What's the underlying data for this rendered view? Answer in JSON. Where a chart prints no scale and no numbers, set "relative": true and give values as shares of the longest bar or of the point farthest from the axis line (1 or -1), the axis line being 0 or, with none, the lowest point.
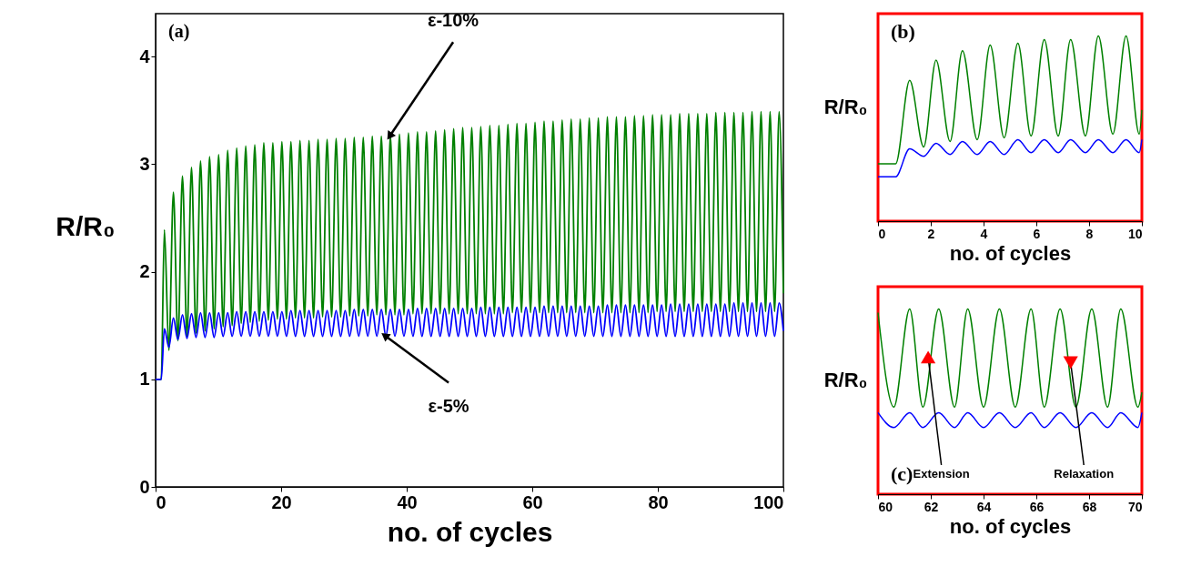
{
  "chart_data": [
    {
      "type": "line",
      "xlabel": "no. of cycles",
      "ylabel": "R/R₀",
      "xlim": [
        0,
        100
      ],
      "ylim": [
        0,
        4.4
      ],
      "xticks": [
        0,
        20,
        40,
        60,
        80,
        100
      ],
      "yticks": [
        0,
        1,
        2,
        3,
        4
      ],
      "grid": false,
      "annotations": [
        "(a)"
      ],
      "x": [
        0,
        0.9,
        1.4,
        2.12,
        2.84,
        3.56,
        4.28,
        5.0,
        5.72,
        6.44,
        7.16,
        7.88,
        8.6,
        9.32,
        10.04,
        10.76,
        11.48,
        12.2,
        12.92,
        13.64,
        14.36,
        15.08,
        15.8,
        16.52,
        17.24,
        17.96,
        18.68,
        19.4,
        20.12,
        20.84,
        21.56,
        22.28,
        23.0,
        23.72,
        24.44,
        25.16,
        25.88,
        26.6,
        27.32,
        28.04,
        28.76,
        29.48,
        30.2,
        30.92,
        31.64,
        32.36,
        33.08,
        33.8,
        34.52,
        35.24,
        35.96,
        36.68,
        37.4,
        38.12,
        38.84,
        39.56,
        40.28,
        41.0,
        41.72,
        42.44,
        43.16,
        43.88,
        44.6,
        45.32,
        46.04,
        46.76,
        47.48,
        48.2,
        48.92,
        49.64,
        50.36,
        51.08,
        51.8,
        52.52,
        53.24,
        53.96,
        54.68,
        55.4,
        56.12,
        56.84,
        57.56,
        58.28,
        59.0,
        59.72,
        60.44,
        61.16,
        61.88,
        62.6,
        63.32,
        64.04,
        64.76,
        65.48,
        66.2,
        66.92,
        67.64,
        68.36,
        69.08,
        69.8,
        70.52,
        71.24,
        71.96,
        72.68,
        73.4,
        74.12,
        74.84,
        75.56,
        76.28,
        77.0,
        77.72,
        78.44,
        79.16,
        79.88,
        80.6,
        81.32,
        82.04,
        82.76,
        83.48,
        84.2,
        84.92,
        85.64,
        86.36,
        87.08,
        87.8,
        88.52,
        89.24,
        89.96,
        90.68,
        91.4,
        92.12,
        92.84,
        93.56,
        94.28,
        95.0,
        95.72,
        96.44,
        97.16,
        97.88,
        98.6,
        99.32,
        100
      ],
      "series": [
        {
          "name": "ε-10%",
          "color": "#008000",
          "values": [
            1.0,
            1.0,
            2.39,
            1.27,
            2.74,
            1.36,
            2.89,
            1.4,
            2.97,
            1.43,
            3.03,
            1.45,
            3.07,
            1.47,
            3.09,
            1.49,
            3.13,
            1.5,
            3.15,
            1.52,
            3.17,
            1.53,
            3.18,
            1.54,
            3.2,
            1.55,
            3.2,
            1.56,
            3.21,
            1.56,
            3.21,
            1.57,
            3.22,
            1.57,
            3.22,
            1.57,
            3.23,
            1.58,
            3.23,
            1.58,
            3.24,
            1.58,
            3.24,
            1.59,
            3.25,
            1.59,
            3.25,
            1.59,
            3.26,
            1.6,
            3.26,
            1.6,
            3.27,
            1.6,
            3.28,
            1.6,
            3.29,
            1.61,
            3.3,
            1.61,
            3.3,
            1.61,
            3.31,
            1.61,
            3.32,
            1.61,
            3.33,
            1.61,
            3.34,
            1.61,
            3.34,
            1.61,
            3.35,
            1.61,
            3.36,
            1.61,
            3.36,
            1.61,
            3.37,
            1.62,
            3.38,
            1.62,
            3.38,
            1.62,
            3.39,
            1.62,
            3.4,
            1.62,
            3.4,
            1.62,
            3.41,
            1.62,
            3.42,
            1.62,
            3.42,
            1.62,
            3.43,
            1.62,
            3.43,
            1.62,
            3.44,
            1.62,
            3.44,
            1.62,
            3.44,
            1.62,
            3.45,
            1.62,
            3.45,
            1.62,
            3.46,
            1.63,
            3.46,
            1.63,
            3.46,
            1.63,
            3.47,
            1.63,
            3.47,
            1.63,
            3.47,
            1.63,
            3.47,
            1.63,
            3.48,
            1.63,
            3.48,
            1.63,
            3.48,
            1.63,
            3.48,
            1.63,
            3.49,
            1.63,
            3.49,
            1.63,
            3.49,
            1.63,
            3.49,
            1.8
          ]
        },
        {
          "name": "ε-5%",
          "color": "#0000ff",
          "values": [
            1.0,
            1.0,
            1.47,
            1.3,
            1.57,
            1.37,
            1.6,
            1.38,
            1.61,
            1.39,
            1.62,
            1.39,
            1.62,
            1.39,
            1.62,
            1.4,
            1.62,
            1.4,
            1.63,
            1.4,
            1.63,
            1.4,
            1.63,
            1.4,
            1.63,
            1.4,
            1.63,
            1.4,
            1.63,
            1.4,
            1.64,
            1.4,
            1.64,
            1.4,
            1.64,
            1.4,
            1.64,
            1.4,
            1.64,
            1.4,
            1.64,
            1.4,
            1.64,
            1.4,
            1.65,
            1.4,
            1.65,
            1.4,
            1.65,
            1.4,
            1.65,
            1.4,
            1.65,
            1.4,
            1.65,
            1.4,
            1.65,
            1.4,
            1.66,
            1.4,
            1.66,
            1.4,
            1.66,
            1.4,
            1.66,
            1.4,
            1.66,
            1.4,
            1.66,
            1.4,
            1.66,
            1.4,
            1.67,
            1.4,
            1.67,
            1.4,
            1.67,
            1.4,
            1.67,
            1.4,
            1.67,
            1.4,
            1.67,
            1.4,
            1.67,
            1.4,
            1.68,
            1.4,
            1.68,
            1.4,
            1.68,
            1.4,
            1.68,
            1.4,
            1.68,
            1.4,
            1.68,
            1.4,
            1.68,
            1.4,
            1.69,
            1.4,
            1.69,
            1.4,
            1.69,
            1.4,
            1.69,
            1.4,
            1.69,
            1.4,
            1.69,
            1.4,
            1.69,
            1.4,
            1.7,
            1.4,
            1.7,
            1.4,
            1.7,
            1.4,
            1.7,
            1.4,
            1.7,
            1.4,
            1.7,
            1.4,
            1.7,
            1.4,
            1.71,
            1.4,
            1.71,
            1.4,
            1.71,
            1.4,
            1.71,
            1.4,
            1.71,
            1.4,
            1.71,
            1.45
          ]
        }
      ]
    },
    {
      "type": "line",
      "relative": true,
      "xlabel": "no. of cycles",
      "ylabel": "R/R₀",
      "xlim": [
        0,
        10
      ],
      "xticks": [
        0,
        2,
        4,
        6,
        8,
        10
      ],
      "tick_labels": "x",
      "grid": false,
      "annotations": [
        "(b)"
      ],
      "x": [
        0,
        0.67,
        1.2,
        1.73,
        2.2,
        2.73,
        3.2,
        3.76,
        4.25,
        4.78,
        5.3,
        5.8,
        6.3,
        6.83,
        7.3,
        7.86,
        8.35,
        8.9,
        9.4,
        9.9,
        10
      ],
      "series": [
        {
          "color": "#008000",
          "values": [
            0.31,
            0.31,
            0.76,
            0.4,
            0.87,
            0.43,
            0.92,
            0.44,
            0.95,
            0.45,
            0.96,
            0.46,
            0.98,
            0.46,
            0.98,
            0.46,
            1.0,
            0.47,
            1.0,
            0.47,
            0.6
          ]
        },
        {
          "color": "#0000ff",
          "values": [
            0.24,
            0.24,
            0.39,
            0.35,
            0.42,
            0.36,
            0.43,
            0.36,
            0.43,
            0.36,
            0.44,
            0.37,
            0.44,
            0.37,
            0.44,
            0.37,
            0.44,
            0.37,
            0.44,
            0.37,
            0.44
          ]
        }
      ]
    },
    {
      "type": "line",
      "relative": true,
      "xlabel": "no. of cycles",
      "ylabel": "R/R₀",
      "xlim": [
        60,
        70
      ],
      "xticks": [
        60,
        62,
        64,
        66,
        68,
        70
      ],
      "tick_labels": "x",
      "grid": false,
      "annotations": [
        "(c)",
        {
          "text": "Extension",
          "x": 61.9,
          "y": 0.74
        },
        {
          "text": "Relaxation",
          "x": 67.3,
          "y": 0.71
        }
      ],
      "x": [
        60,
        60.6,
        61.2,
        61.7,
        62.3,
        62.9,
        63.4,
        64.0,
        64.6,
        65.2,
        65.8,
        66.3,
        66.9,
        67.5,
        68.1,
        68.7,
        69.2,
        69.85,
        70
      ],
      "series": [
        {
          "color": "#008000",
          "values": [
            0.98,
            0.47,
            1.0,
            0.47,
            1.0,
            0.47,
            1.0,
            0.47,
            1.0,
            0.47,
            1.0,
            0.47,
            1.0,
            0.47,
            1.0,
            0.47,
            1.0,
            0.47,
            0.55
          ]
        },
        {
          "color": "#0000ff",
          "values": [
            0.44,
            0.36,
            0.44,
            0.36,
            0.44,
            0.36,
            0.44,
            0.36,
            0.44,
            0.36,
            0.44,
            0.36,
            0.44,
            0.36,
            0.44,
            0.36,
            0.44,
            0.36,
            0.44
          ]
        }
      ]
    }
  ]
}
